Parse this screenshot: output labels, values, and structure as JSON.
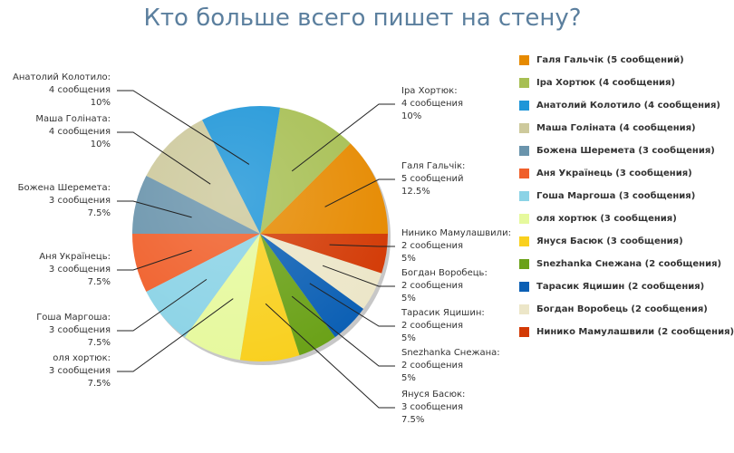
{
  "chart_data": {
    "type": "pie",
    "title": "Кто больше всего пишет на стену?",
    "unit": "сообщения",
    "legend_position": "right",
    "slices": [
      {
        "name": "Галя Гальчік",
        "value": 5,
        "percent": "12.5%",
        "value_label": "5 сообщений",
        "legend": "Галя Гальчік (5 сообщений)",
        "color": "#e68a00"
      },
      {
        "name": "Іра Хортюк",
        "value": 4,
        "percent": "10%",
        "value_label": "4 сообщения",
        "legend": "Іра Хортюк (4 сообщения)",
        "color": "#a7bf53"
      },
      {
        "name": "Анатолий Колотило",
        "value": 4,
        "percent": "10%",
        "value_label": "4 сообщения",
        "legend": "Анатолий Колотило (4 сообщения)",
        "color": "#1f96d8"
      },
      {
        "name": "Маша Голіната",
        "value": 4,
        "percent": "10%",
        "value_label": "4 сообщения",
        "legend": "Маша Голіната (4 сообщения)",
        "color": "#cdc99c"
      },
      {
        "name": "Божена Шеремета",
        "value": 3,
        "percent": "7.5%",
        "value_label": "3 сообщения",
        "legend": "Божена Шеремета (3 сообщения)",
        "color": "#6a94ac"
      },
      {
        "name": "Аня Українець",
        "value": 3,
        "percent": "7.5%",
        "value_label": "3 сообщения",
        "legend": "Аня Українець (3 сообщения)",
        "color": "#f05f2a"
      },
      {
        "name": "Гоша Маргоша",
        "value": 3,
        "percent": "7.5%",
        "value_label": "3 сообщения",
        "legend": "Гоша Маргоша (3 сообщения)",
        "color": "#8bd3e6"
      },
      {
        "name": "оля хортюк",
        "value": 3,
        "percent": "7.5%",
        "value_label": "3 сообщения",
        "legend": "оля хортюк (3 сообщения)",
        "color": "#e6f99d"
      },
      {
        "name": "Януся Басюк",
        "value": 3,
        "percent": "7.5%",
        "value_label": "3 сообщения",
        "legend": "Януся Басюк (3 сообщения)",
        "color": "#f9d01e"
      },
      {
        "name": "Snezhanka Снежана",
        "value": 2,
        "percent": "5%",
        "value_label": "2 сообщения",
        "legend": "Snezhanka Снежана (2 сообщения)",
        "color": "#6aa117"
      },
      {
        "name": "Тарасик Яцишин",
        "value": 2,
        "percent": "5%",
        "value_label": "2 сообщения",
        "legend": "Тарасик Яцишин (2 сообщения)",
        "color": "#0b5fb4"
      },
      {
        "name": "Богдан Воробець",
        "value": 2,
        "percent": "5%",
        "value_label": "2 сообщения",
        "legend": "Богдан Воробець (2 сообщения)",
        "color": "#ece6c8"
      },
      {
        "name": "Нинико Мамулашвили",
        "value": 2,
        "percent": "5%",
        "value_label": "2 сообщения",
        "legend": "Нинико Мамулашвили (2 сообщения)",
        "color": "#d33a05"
      }
    ]
  }
}
